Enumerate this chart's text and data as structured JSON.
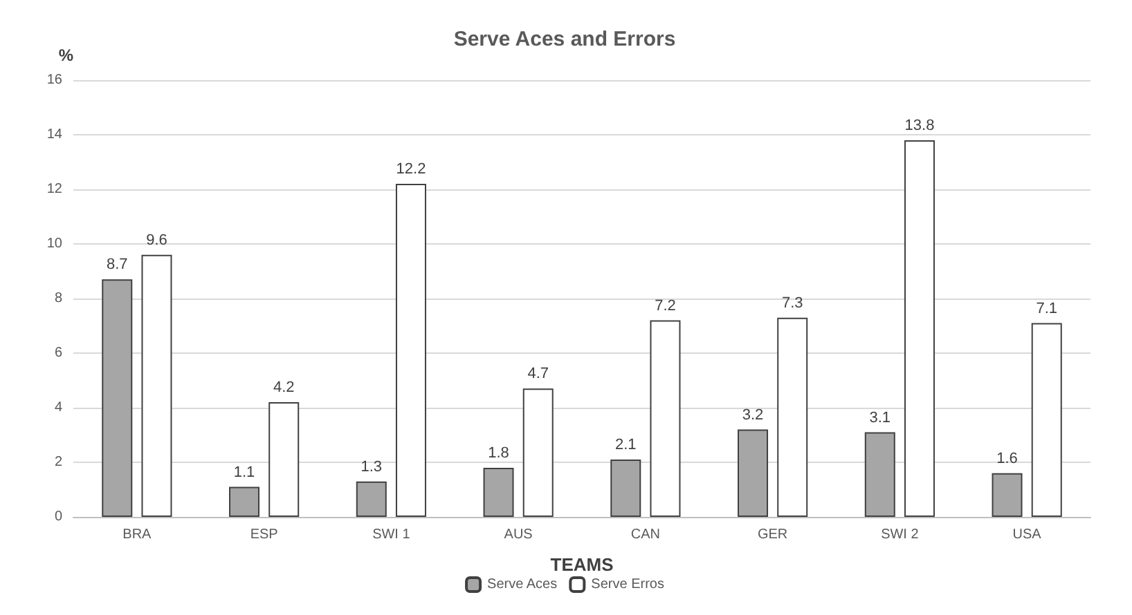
{
  "chart_data": {
    "type": "bar",
    "title": "Serve Aces and Errors",
    "ylabel": "%",
    "xlabel": "TEAMS",
    "categories": [
      "BRA",
      "ESP",
      "SWI 1",
      "AUS",
      "CAN",
      "GER",
      "SWI 2",
      "USA"
    ],
    "series": [
      {
        "name": "Serve Aces",
        "color": "#a6a6a6",
        "values": [
          8.7,
          1.1,
          1.3,
          1.8,
          2.1,
          3.2,
          3.1,
          1.6
        ]
      },
      {
        "name": "Serve Erros",
        "color": "#ffffff",
        "values": [
          9.6,
          4.2,
          12.2,
          4.7,
          7.2,
          7.3,
          13.8,
          7.1
        ]
      }
    ],
    "ylim": [
      0,
      16
    ],
    "yticks": [
      0,
      2,
      4,
      6,
      8,
      10,
      12,
      14,
      16
    ],
    "grid": "y",
    "legend": "bottom",
    "data_labels": true
  }
}
